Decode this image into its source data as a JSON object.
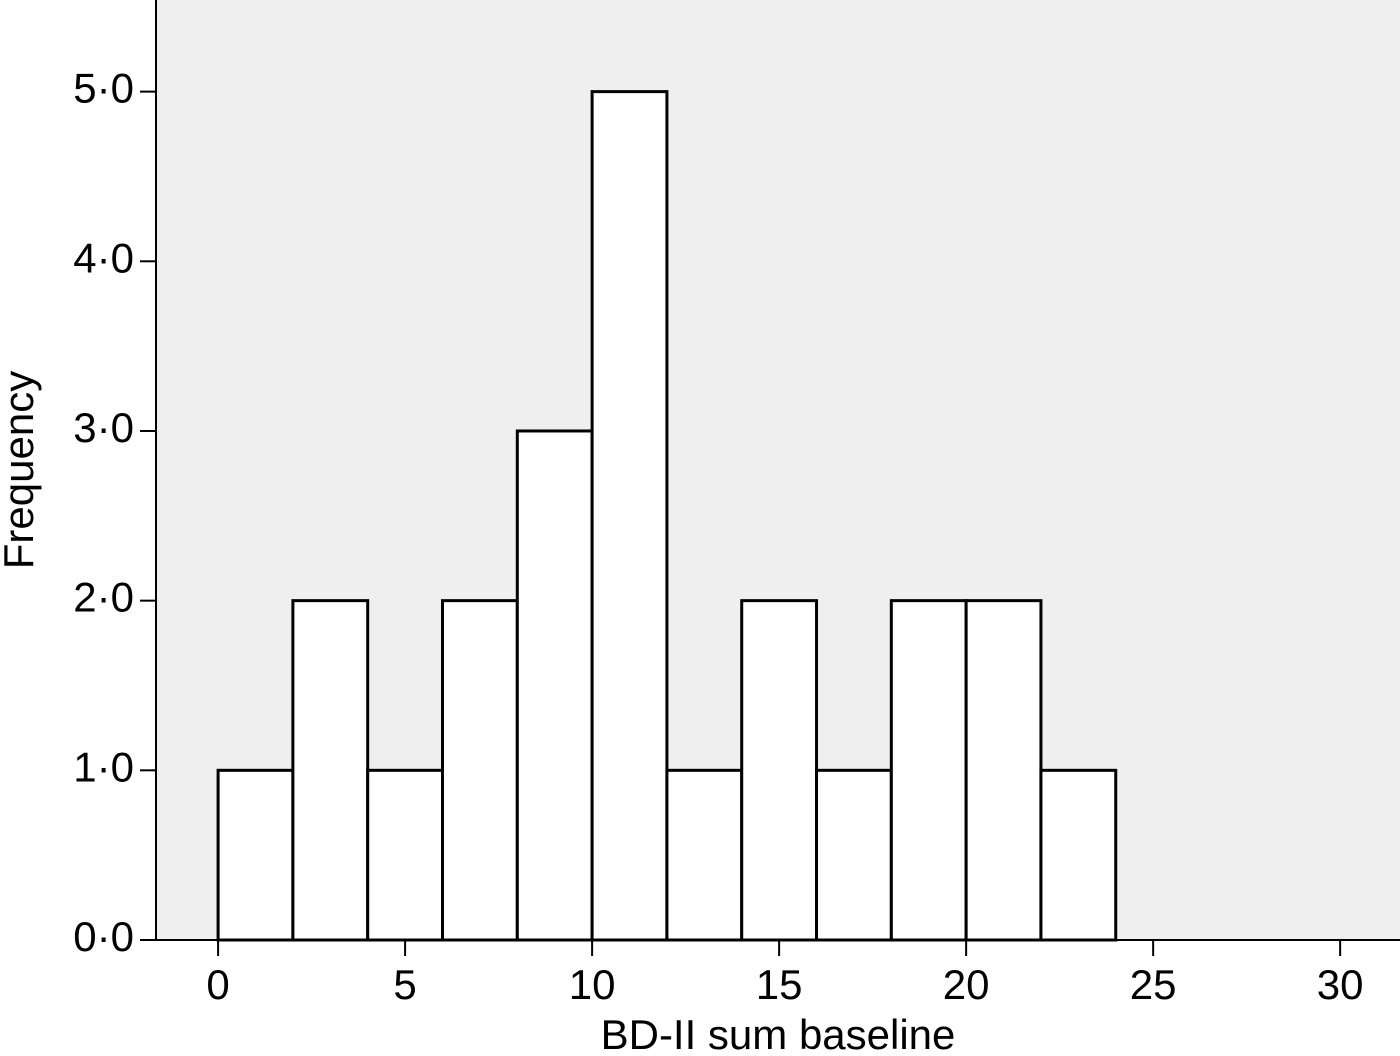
{
  "chart_data": {
    "type": "histogram",
    "x_label": "BD-II sum baseline",
    "y_label": "Frequency",
    "bins": [
      0,
      2,
      4,
      6,
      8,
      10,
      12,
      14,
      16,
      18,
      20,
      22,
      24
    ],
    "values": [
      1,
      2,
      1,
      2,
      3,
      5,
      1,
      2,
      1,
      2,
      2,
      1
    ],
    "color": "#ffffff",
    "background": "#efefef",
    "xlim": [
      -1.66,
      31.6
    ],
    "xticks": [
      0,
      5,
      10,
      15,
      20,
      25,
      30
    ],
    "ylim": [
      0,
      5.54
    ],
    "yticks": [
      {
        "value": 0,
        "label": "0·0"
      },
      {
        "value": 1,
        "label": "1·0"
      },
      {
        "value": 2,
        "label": "2·0"
      },
      {
        "value": 3,
        "label": "3·0"
      },
      {
        "value": 4,
        "label": "4·0"
      },
      {
        "value": 5,
        "label": "5·0"
      }
    ]
  }
}
